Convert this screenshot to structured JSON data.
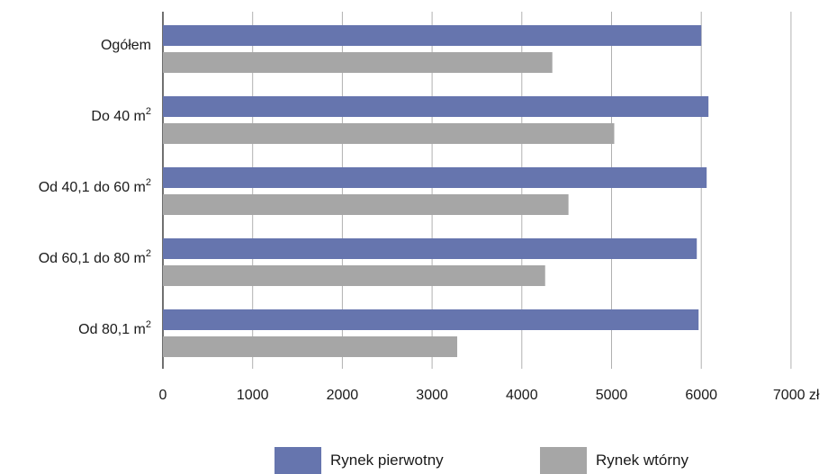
{
  "chart_data": {
    "type": "bar",
    "orientation": "horizontal",
    "categories": [
      {
        "label": "Ogółem",
        "superscript": ""
      },
      {
        "label": "Do 40 m",
        "superscript": "2"
      },
      {
        "label": "Od 40,1 do 60 m",
        "superscript": "2"
      },
      {
        "label": "Od 60,1 do 80 m",
        "superscript": "2"
      },
      {
        "label": "Od 80,1 m",
        "superscript": "2"
      }
    ],
    "series": [
      {
        "name": "Rynek pierwotny",
        "color": "#6675ae",
        "values": [
          6000,
          6080,
          6060,
          5950,
          5970
        ]
      },
      {
        "name": "Rynek wtórny",
        "color": "#a6a6a6",
        "values": [
          4340,
          5030,
          4520,
          4260,
          3280
        ]
      }
    ],
    "xticks": [
      "0",
      "1000",
      "2000",
      "3000",
      "4000",
      "5000",
      "6000",
      "7000 zł"
    ],
    "xlim": [
      0,
      7000
    ],
    "grid": true,
    "legend_position": "bottom"
  }
}
